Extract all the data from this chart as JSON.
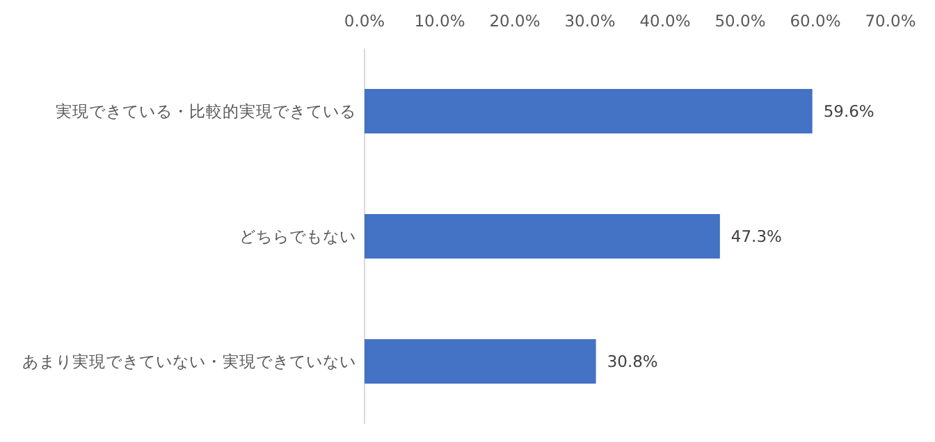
{
  "chart_data": {
    "type": "bar",
    "orientation": "horizontal",
    "categories": [
      "実現できている・比較的実現できている",
      "どちらでもない",
      "あまり実現できていない・実現できていない"
    ],
    "values": [
      59.6,
      47.3,
      30.8
    ],
    "color": "#4472c4",
    "value_labels": [
      "59.6%",
      "47.3%",
      "30.8%"
    ],
    "xlim": [
      0,
      70
    ],
    "xticks": [
      {
        "value": 0,
        "label": "0.0%"
      },
      {
        "value": 10,
        "label": "10.0%"
      },
      {
        "value": 20,
        "label": "20.0%"
      },
      {
        "value": 30,
        "label": "30.0%"
      },
      {
        "value": 40,
        "label": "40.0%"
      },
      {
        "value": 50,
        "label": "50.0%"
      },
      {
        "value": 60,
        "label": "60.0%"
      },
      {
        "value": 70,
        "label": "70.0%"
      }
    ],
    "grid": false
  }
}
